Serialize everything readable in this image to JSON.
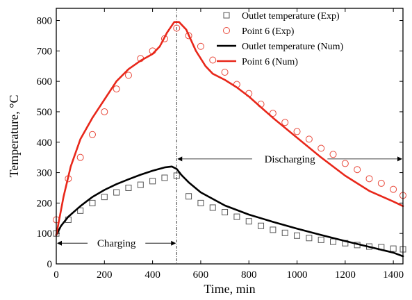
{
  "chart_data": {
    "type": "line",
    "xlabel": "Time, min",
    "ylabel": "Temperature, °C",
    "xlim": [
      0,
      1440
    ],
    "ylim": [
      0,
      840
    ],
    "xticks": [
      "0",
      "200",
      "400",
      "600",
      "800",
      "1000",
      "1200",
      "1400"
    ],
    "yticks": [
      "0",
      "100",
      "200",
      "300",
      "400",
      "500",
      "600",
      "700",
      "800"
    ],
    "grid": false,
    "legend_position": "top-right",
    "series": [
      {
        "name": "Outlet temperature (Exp)",
        "kind": "markers",
        "marker": "square",
        "color": "#555555",
        "x": [
          0,
          50,
          100,
          150,
          200,
          250,
          300,
          350,
          400,
          450,
          500,
          550,
          600,
          650,
          700,
          750,
          800,
          850,
          900,
          950,
          1000,
          1050,
          1100,
          1150,
          1200,
          1250,
          1300,
          1350,
          1400,
          1440
        ],
        "y": [
          100,
          145,
          175,
          200,
          220,
          235,
          250,
          260,
          272,
          283,
          290,
          222,
          200,
          185,
          170,
          155,
          140,
          125,
          112,
          102,
          93,
          85,
          79,
          73,
          68,
          62,
          57,
          55,
          50,
          48
        ]
      },
      {
        "name": "Point 6 (Exp)",
        "kind": "markers",
        "marker": "circle",
        "color": "#e8483a",
        "x": [
          0,
          50,
          100,
          150,
          200,
          250,
          300,
          350,
          400,
          450,
          500,
          550,
          600,
          650,
          700,
          750,
          800,
          850,
          900,
          950,
          1000,
          1050,
          1100,
          1150,
          1200,
          1250,
          1300,
          1350,
          1400,
          1440
        ],
        "y": [
          145,
          280,
          350,
          425,
          500,
          575,
          620,
          675,
          700,
          740,
          775,
          750,
          715,
          670,
          630,
          590,
          560,
          525,
          495,
          465,
          435,
          410,
          380,
          360,
          330,
          310,
          280,
          265,
          245,
          225
        ]
      },
      {
        "name": "Outlet temperature (Num)",
        "kind": "line",
        "color": "#000000",
        "x": [
          0,
          20,
          50,
          100,
          150,
          200,
          250,
          300,
          350,
          400,
          450,
          480,
          500,
          520,
          550,
          600,
          700,
          800,
          900,
          1000,
          1100,
          1200,
          1300,
          1400,
          1440
        ],
        "y": [
          95,
          125,
          155,
          190,
          220,
          243,
          262,
          278,
          293,
          306,
          317,
          320,
          312,
          292,
          268,
          235,
          192,
          162,
          138,
          116,
          95,
          75,
          56,
          37,
          25
        ]
      },
      {
        "name": "Point 6 (Num)",
        "kind": "line",
        "color": "#e8271a",
        "x": [
          0,
          30,
          60,
          100,
          150,
          200,
          250,
          300,
          350,
          400,
          430,
          460,
          490,
          510,
          540,
          580,
          620,
          650,
          700,
          750,
          800,
          850,
          900,
          1000,
          1100,
          1200,
          1300,
          1400,
          1440
        ],
        "y": [
          95,
          220,
          320,
          410,
          480,
          540,
          600,
          640,
          668,
          690,
          715,
          760,
          795,
          795,
          770,
          700,
          650,
          625,
          605,
          580,
          550,
          515,
          480,
          415,
          350,
          290,
          240,
          205,
          190
        ]
      }
    ],
    "divider_x": 500,
    "annotations": [
      {
        "label": "Charging",
        "y": 68,
        "x_from": 0,
        "x_to": 500
      },
      {
        "label": "Discharging",
        "y": 345,
        "x_from": 500,
        "x_to": 1440
      }
    ]
  }
}
